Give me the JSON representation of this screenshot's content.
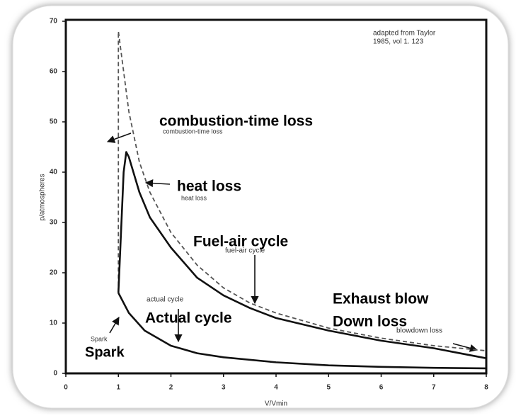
{
  "chart_data": {
    "type": "line",
    "xlabel": "V/Vmin",
    "ylabel": "p/atmospheres",
    "xlim": [
      0,
      8
    ],
    "ylim": [
      0,
      70
    ],
    "xticks": [
      0,
      1,
      2,
      3,
      4,
      5,
      6,
      7,
      8
    ],
    "yticks": [
      0,
      10,
      20,
      30,
      40,
      50,
      60,
      70
    ],
    "series": [
      {
        "name": "fuel-air cycle",
        "color": "#555555",
        "dashed": true,
        "x": [
          1,
          1,
          1.1,
          1.2,
          1.4,
          1.6,
          2,
          2.5,
          3,
          3.5,
          4,
          5,
          6,
          7,
          8
        ],
        "values": [
          16,
          68,
          60,
          52,
          42,
          36,
          28,
          21.5,
          17,
          14,
          12,
          9,
          7,
          5.5,
          4.5
        ]
      },
      {
        "name": "actual cycle",
        "color": "#111111",
        "dashed": false,
        "x": [
          1,
          1.1,
          1.15,
          1.2,
          1.4,
          1.6,
          2,
          2.5,
          3,
          3.5,
          4,
          5,
          6,
          7,
          8,
          8
        ],
        "values": [
          16,
          40,
          44,
          43,
          36,
          31,
          25,
          19,
          15.5,
          13,
          11,
          8.5,
          6.5,
          5,
          3,
          1.5
        ]
      },
      {
        "color": "#111111",
        "dashed": false,
        "x": [
          8,
          7,
          6,
          5,
          4,
          3,
          2.5,
          2,
          1.5,
          1.2,
          1
        ],
        "values": [
          1,
          1.1,
          1.3,
          1.6,
          2.2,
          3.2,
          4,
          5.5,
          8.5,
          12,
          16
        ]
      }
    ],
    "annotations": [
      "adapted from Taylor",
      "1985, vol 1. 123",
      "combustion-time loss",
      "combustion-time loss",
      "heat loss",
      "heat loss",
      "Fuel-air cycle",
      "Actual cycle",
      "blowdown loss",
      "Exhaust blow",
      "Down loss",
      "Spark",
      "Spark"
    ]
  }
}
